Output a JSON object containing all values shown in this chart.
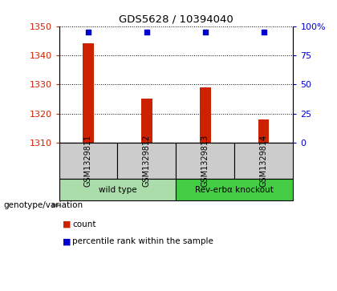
{
  "title": "GDS5628 / 10394040",
  "samples": [
    "GSM1329811",
    "GSM1329812",
    "GSM1329813",
    "GSM1329814"
  ],
  "counts": [
    1344,
    1325,
    1329,
    1318
  ],
  "percentiles": [
    95,
    95,
    95,
    95
  ],
  "ylim_left": [
    1310,
    1350
  ],
  "ylim_right": [
    0,
    100
  ],
  "yticks_left": [
    1310,
    1320,
    1330,
    1340,
    1350
  ],
  "yticks_right": [
    0,
    25,
    50,
    75,
    100
  ],
  "bar_color": "#cc2200",
  "dot_color": "#0000cc",
  "bar_width": 0.18,
  "background_color": "#ffffff",
  "groups": [
    {
      "label": "wild type",
      "samples": [
        0,
        1
      ],
      "color": "#aaddaa"
    },
    {
      "label": "Rev-erbα knockout",
      "samples": [
        2,
        3
      ],
      "color": "#44cc44"
    }
  ],
  "group_label": "genotype/variation",
  "legend_items": [
    {
      "color": "#cc2200",
      "label": "count"
    },
    {
      "color": "#0000cc",
      "label": "percentile rank within the sample"
    }
  ],
  "tick_label_color_left": "#cc2200",
  "tick_label_color_right": "#0000cc",
  "sample_box_color": "#cccccc"
}
